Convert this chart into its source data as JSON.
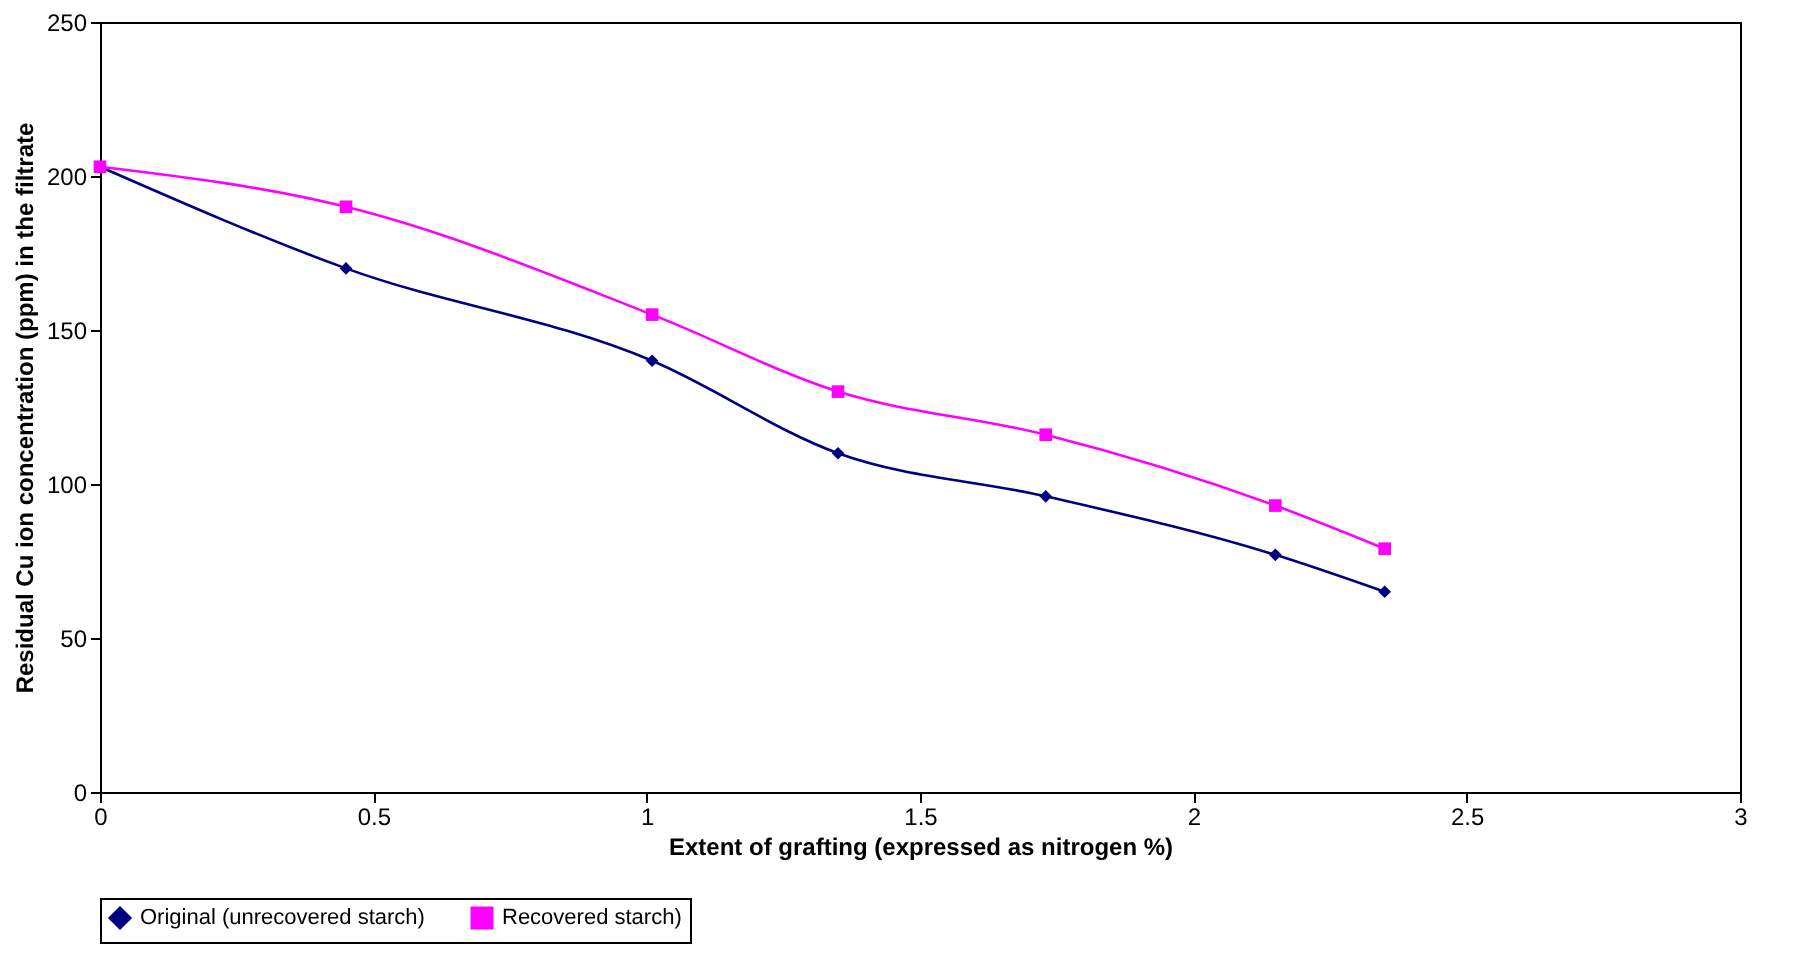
{
  "chart_data": {
    "type": "line",
    "xlabel": "Extent of grafting (expressed as nitrogen %)",
    "ylabel": "Residual Cu ion concentration (ppm) in the filtrate",
    "x": [
      0,
      0.45,
      1.01,
      1.35,
      1.73,
      2.15,
      2.35
    ],
    "series": [
      {
        "name": "Original (unrecovered starch)",
        "color": "#000080",
        "marker": "diamond",
        "values": [
          203,
          170,
          140,
          110,
          96,
          77,
          65
        ]
      },
      {
        "name": "Recovered starch)",
        "color": "#ff00ff",
        "marker": "square",
        "values": [
          203,
          190,
          155,
          130,
          116,
          93,
          79
        ]
      }
    ],
    "xlim": [
      0,
      3
    ],
    "xticks": [
      0,
      0.5,
      1,
      1.5,
      2,
      2.5,
      3
    ],
    "ylim": [
      0,
      250
    ],
    "yticks": [
      0,
      50,
      100,
      150,
      200,
      250
    ],
    "grid": false,
    "legend": "bottom",
    "line_style": "solid"
  }
}
